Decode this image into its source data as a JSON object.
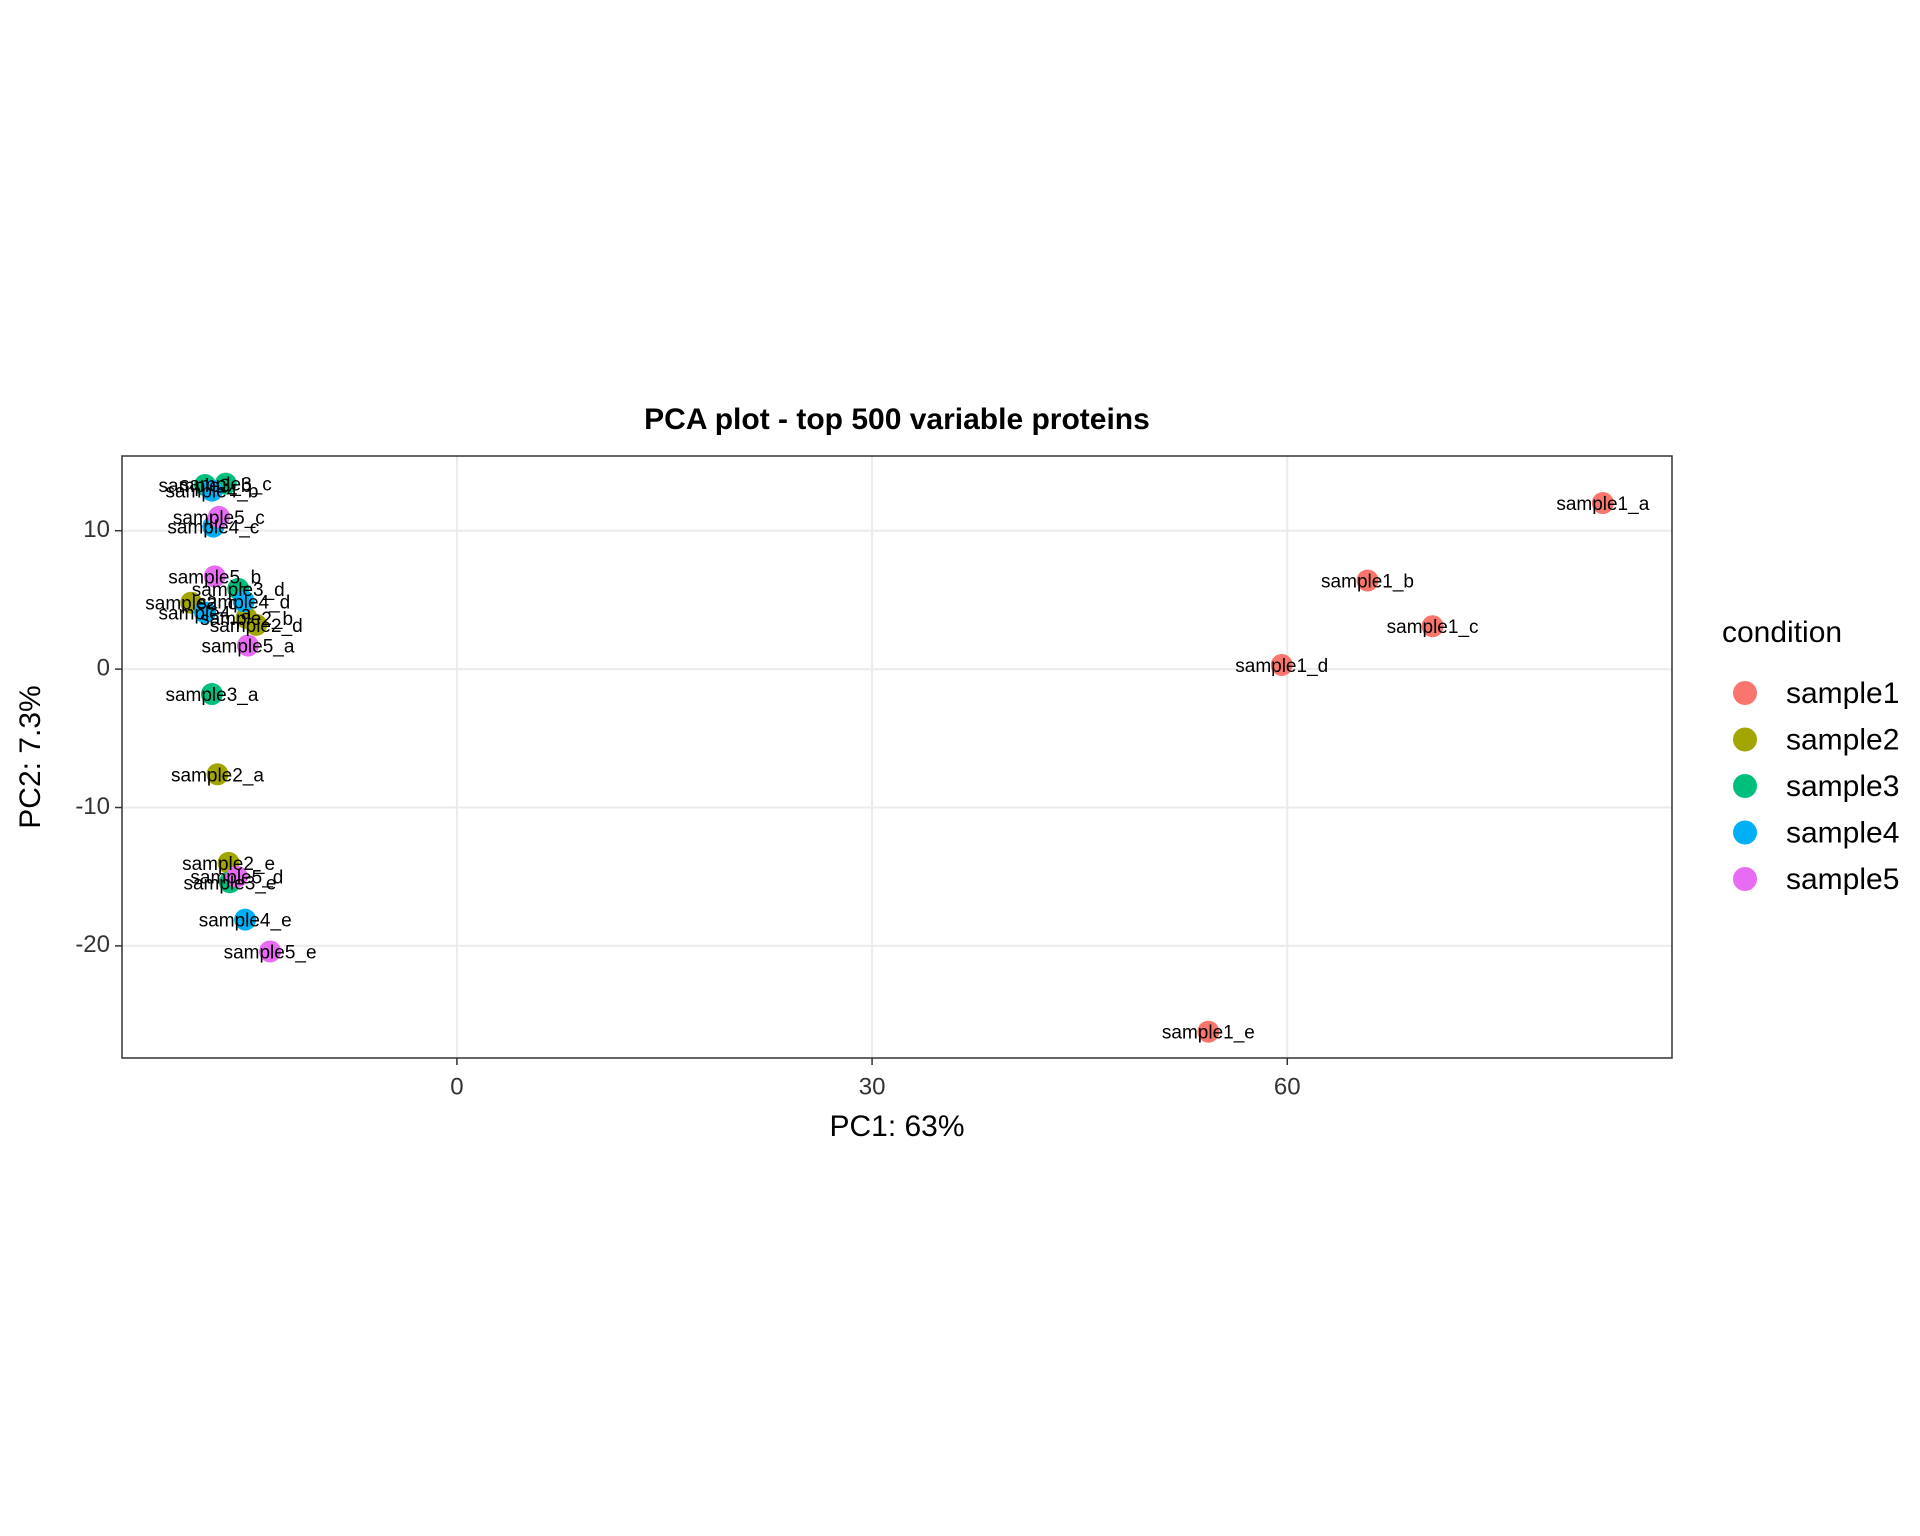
{
  "chart_data": {
    "type": "scatter",
    "title": "PCA plot - top 500 variable proteins",
    "x_label": "PC1: 63%",
    "y_label": "PC2: 7.3%",
    "legend_title": "condition",
    "xlim": [
      -24.2,
      87.8
    ],
    "ylim": [
      -28.1,
      15.4
    ],
    "xticks": [
      0,
      30,
      60
    ],
    "yticks": [
      -20,
      -10,
      0,
      10
    ],
    "grid": true,
    "legend_position": "right",
    "series": [
      {
        "name": "sample1",
        "color": "#F8766D",
        "labels": [
          "sample1_a",
          "sample1_b",
          "sample1_c",
          "sample1_d",
          "sample1_e"
        ],
        "x": [
          82.8,
          65.8,
          70.5,
          59.6,
          54.3
        ],
        "y": [
          12.0,
          6.4,
          3.1,
          0.3,
          -26.2
        ]
      },
      {
        "name": "sample2",
        "color": "#A3A500",
        "labels": [
          "sample2_a",
          "sample2_b",
          "sample2_c",
          "sample2_d",
          "sample2_e"
        ],
        "x": [
          -17.3,
          -15.2,
          -19.2,
          -14.5,
          -16.5
        ],
        "y": [
          -7.6,
          3.7,
          4.8,
          3.2,
          -14.0
        ]
      },
      {
        "name": "sample3",
        "color": "#00BF7D",
        "labels": [
          "sample3_a",
          "sample3_b",
          "sample3_c",
          "sample3_d",
          "sample3_e"
        ],
        "x": [
          -17.7,
          -18.2,
          -16.7,
          -15.8,
          -16.4
        ],
        "y": [
          -1.8,
          13.3,
          13.4,
          5.8,
          -15.4
        ]
      },
      {
        "name": "sample4",
        "color": "#00B0F6",
        "labels": [
          "sample4_a",
          "sample4_b",
          "sample4_c",
          "sample4_d",
          "sample4_e"
        ],
        "x": [
          -18.2,
          -17.7,
          -17.6,
          -15.4,
          -15.3
        ],
        "y": [
          4.1,
          12.9,
          10.3,
          4.9,
          -18.1
        ]
      },
      {
        "name": "sample5",
        "color": "#E76BF3",
        "labels": [
          "sample5_a",
          "sample5_b",
          "sample5_c",
          "sample5_d",
          "sample5_e"
        ],
        "x": [
          -15.1,
          -17.5,
          -17.2,
          -15.9,
          -13.5
        ],
        "y": [
          1.7,
          6.7,
          11.0,
          -15.0,
          -20.4
        ]
      }
    ]
  }
}
